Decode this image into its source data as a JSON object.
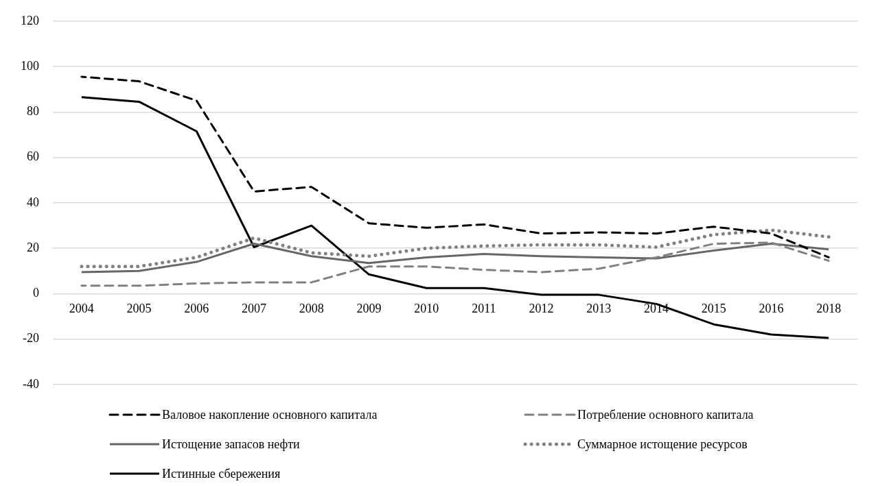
{
  "chart_data": {
    "type": "line",
    "categories": [
      "2004",
      "2005",
      "2006",
      "2007",
      "2008",
      "2009",
      "2010",
      "2011",
      "2012",
      "2013",
      "2014",
      "2015",
      "2016",
      "2018"
    ],
    "series": [
      {
        "name": "Валовое накопление основного капитала",
        "color": "#000000",
        "line_style": "dashed",
        "values": [
          95.5,
          93.5,
          85,
          45,
          47,
          31,
          29,
          30.5,
          26.5,
          27,
          26.5,
          29.5,
          26.5,
          16
        ]
      },
      {
        "name": "Потребление основного капитала",
        "color": "#808080",
        "line_style": "dashed",
        "values": [
          3.5,
          3.5,
          4.5,
          5,
          5,
          12,
          12,
          10.5,
          9.5,
          11,
          16,
          22,
          22.5,
          14.5
        ]
      },
      {
        "name": "Истощение запасов нефти",
        "color": "#666666",
        "line_style": "solid",
        "values": [
          9.5,
          10,
          14,
          22,
          16.5,
          13.5,
          16,
          17.5,
          16.5,
          16,
          15.5,
          19,
          22,
          19.5
        ]
      },
      {
        "name": "Суммарное истощение ресурсов",
        "color": "#808080",
        "line_style": "dotted",
        "values": [
          12,
          12,
          16,
          24.5,
          18,
          16.5,
          20,
          21,
          21.5,
          21.5,
          20.5,
          26,
          28,
          25
        ]
      },
      {
        "name": "Истинные сбережения",
        "color": "#000000",
        "line_style": "solid",
        "values": [
          86.5,
          84.5,
          71.5,
          20.5,
          30,
          8.5,
          2.5,
          2.5,
          -0.5,
          -0.5,
          -4.5,
          -13.5,
          -18,
          -19.5
        ]
      }
    ],
    "ylim": [
      -40,
      120
    ],
    "yticks": [
      -40,
      -20,
      0,
      20,
      40,
      60,
      80,
      100,
      120
    ],
    "grid": "y",
    "legend": "bottom",
    "marker": "none"
  }
}
